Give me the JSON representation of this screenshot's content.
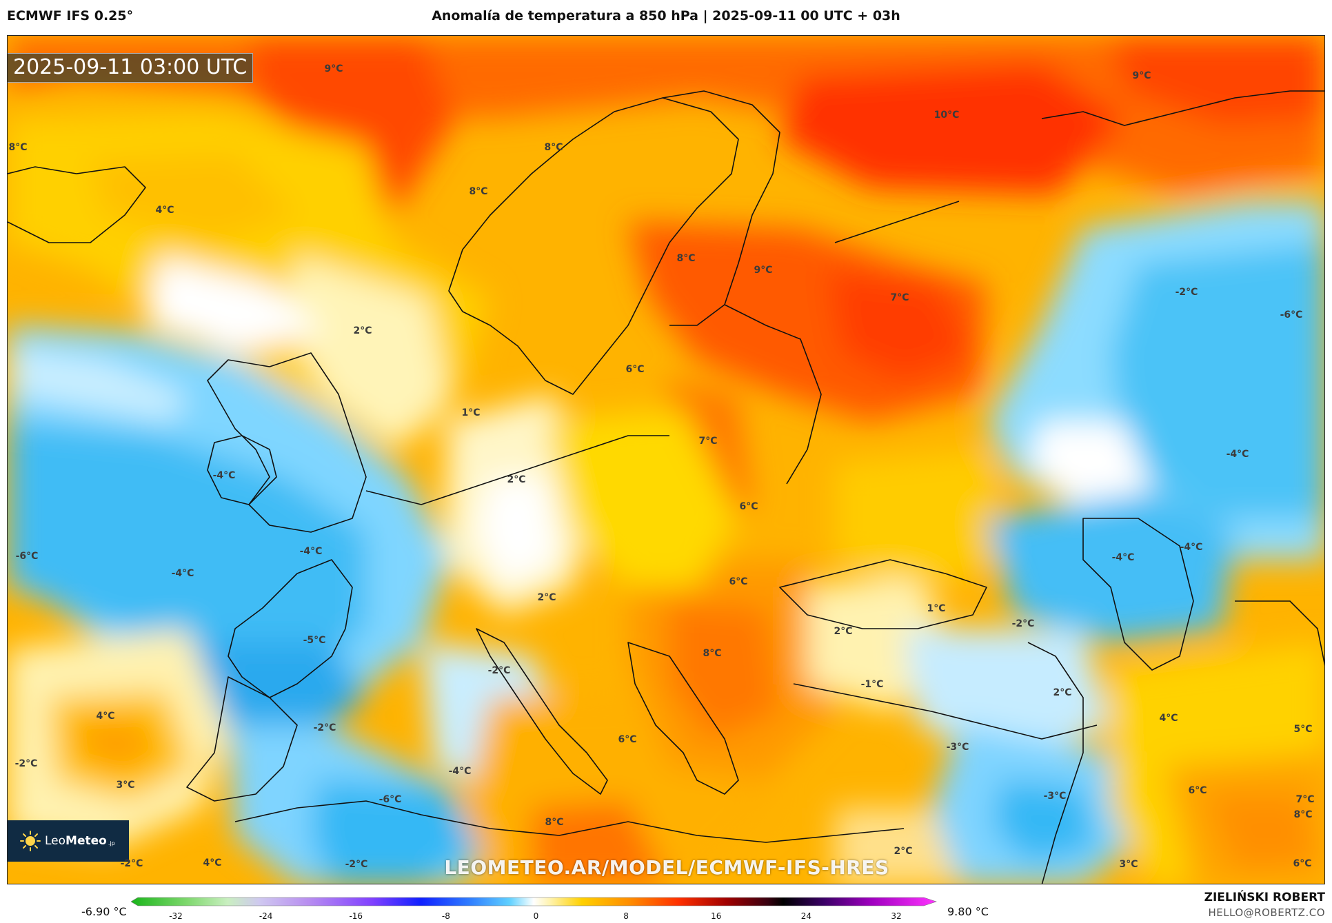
{
  "header": {
    "model": "ECMWF IFS 0.25°",
    "title": "Anomalía de temperatura a 850 hPa | 2025-09-11 00 UTC + 03h"
  },
  "map": {
    "timestamp": "2025-09-11 03:00 UTC",
    "watermark": "LEOMETEO.AR/MODEL/ECMWF-IFS-HRES",
    "logo": {
      "brand_light": "Leo",
      "brand_bold": "Meteo",
      "suffix": ".jp"
    },
    "labels": [
      {
        "text": "9°C"
      },
      {
        "text": "9°C"
      },
      {
        "text": "10°C"
      },
      {
        "text": "8°C"
      },
      {
        "text": "8°C"
      },
      {
        "text": "4°C"
      },
      {
        "text": "8°C"
      },
      {
        "text": "8°C"
      },
      {
        "text": "9°C"
      },
      {
        "text": "7°C"
      },
      {
        "text": "-2°C"
      },
      {
        "text": "-6°C"
      },
      {
        "text": "2°C"
      },
      {
        "text": "6°C"
      },
      {
        "text": "1°C"
      },
      {
        "text": "7°C"
      },
      {
        "text": "-4°C"
      },
      {
        "text": "2°C"
      },
      {
        "text": "-4°C"
      },
      {
        "text": "6°C"
      },
      {
        "text": "-6°C"
      },
      {
        "text": "-4°C"
      },
      {
        "text": "-4°C"
      },
      {
        "text": "-4°C"
      },
      {
        "text": "-4°C"
      },
      {
        "text": "6°C"
      },
      {
        "text": "2°C"
      },
      {
        "text": "1°C"
      },
      {
        "text": "-2°C"
      },
      {
        "text": "-5°C"
      },
      {
        "text": "2°C"
      },
      {
        "text": "8°C"
      },
      {
        "text": "-2°C"
      },
      {
        "text": "-1°C"
      },
      {
        "text": "2°C"
      },
      {
        "text": "4°C"
      },
      {
        "text": "-2°C"
      },
      {
        "text": "4°C"
      },
      {
        "text": "6°C"
      },
      {
        "text": "5°C"
      },
      {
        "text": "-3°C"
      },
      {
        "text": "-2°C"
      },
      {
        "text": "3°C"
      },
      {
        "text": "-4°C"
      },
      {
        "text": "-6°C"
      },
      {
        "text": "-3°C"
      },
      {
        "text": "6°C"
      },
      {
        "text": "7°C"
      },
      {
        "text": "8°C"
      },
      {
        "text": "2°C"
      },
      {
        "text": "3°C"
      },
      {
        "text": "-2°C"
      },
      {
        "text": "4°C"
      },
      {
        "text": "-2°C"
      },
      {
        "text": "6°C"
      },
      {
        "text": "8°C"
      }
    ]
  },
  "colorbar": {
    "min_label": "-6.90 °C",
    "max_label": "9.80 °C",
    "ticks": [
      "-32",
      "-24",
      "-16",
      "-8",
      "0",
      "8",
      "16",
      "24",
      "32"
    ]
  },
  "credits": {
    "author": "ZIELIŃSKI ROBERT",
    "email": "HELLO@ROBERTZ.CO"
  },
  "colors": {
    "red": "#ff3d00",
    "orange": "#ff9800",
    "yellow": "#ffd600",
    "cream": "#fff6c2",
    "white": "#ffffff",
    "light_blue": "#c8ecff",
    "cyan": "#6cd2ff",
    "blue": "#2cb6f5"
  }
}
